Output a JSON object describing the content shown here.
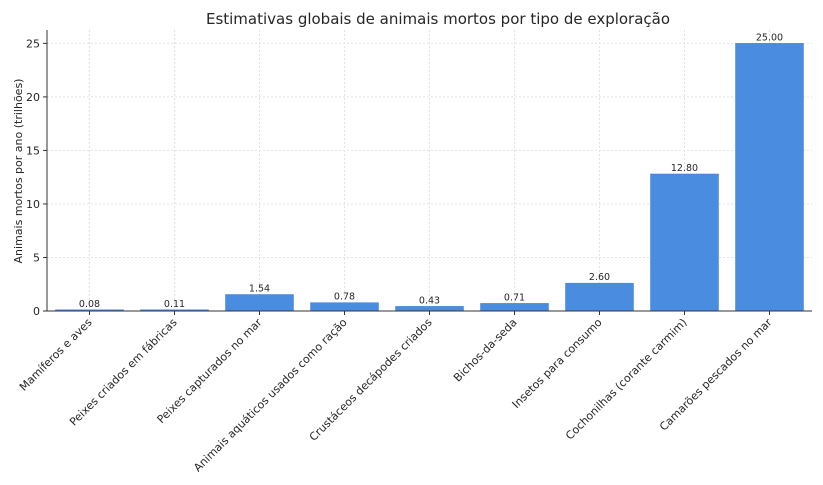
{
  "chart_data": {
    "type": "bar",
    "title": "Estimativas globais de animais mortos por tipo de exploração",
    "xlabel": "",
    "ylabel": "Animais mortos por ano (trilhões)",
    "categories": [
      "Mamíferos e aves",
      "Peixes criados em fábricas",
      "Peixes capturados no mar",
      "Animais aquáticos usados como ração",
      "Crustáceos decápodes criados",
      "Bichos-da-seda",
      "Insetos para consumo",
      "Cochonilhas (corante carmim)",
      "Camarões pescados no mar"
    ],
    "values": [
      0.08,
      0.11,
      1.54,
      0.78,
      0.43,
      0.71,
      2.6,
      12.8,
      25.0
    ],
    "value_labels": [
      "0.08",
      "0.11",
      "1.54",
      "0.78",
      "0.43",
      "0.71",
      "2.60",
      "12.80",
      "25.00"
    ],
    "ylim": [
      0,
      26.25
    ],
    "yticks": [
      0,
      5,
      10,
      15,
      20,
      25
    ],
    "grid": true,
    "bar_color": "#4a8ce0",
    "bar_edge_color": "#3f7fd6"
  }
}
